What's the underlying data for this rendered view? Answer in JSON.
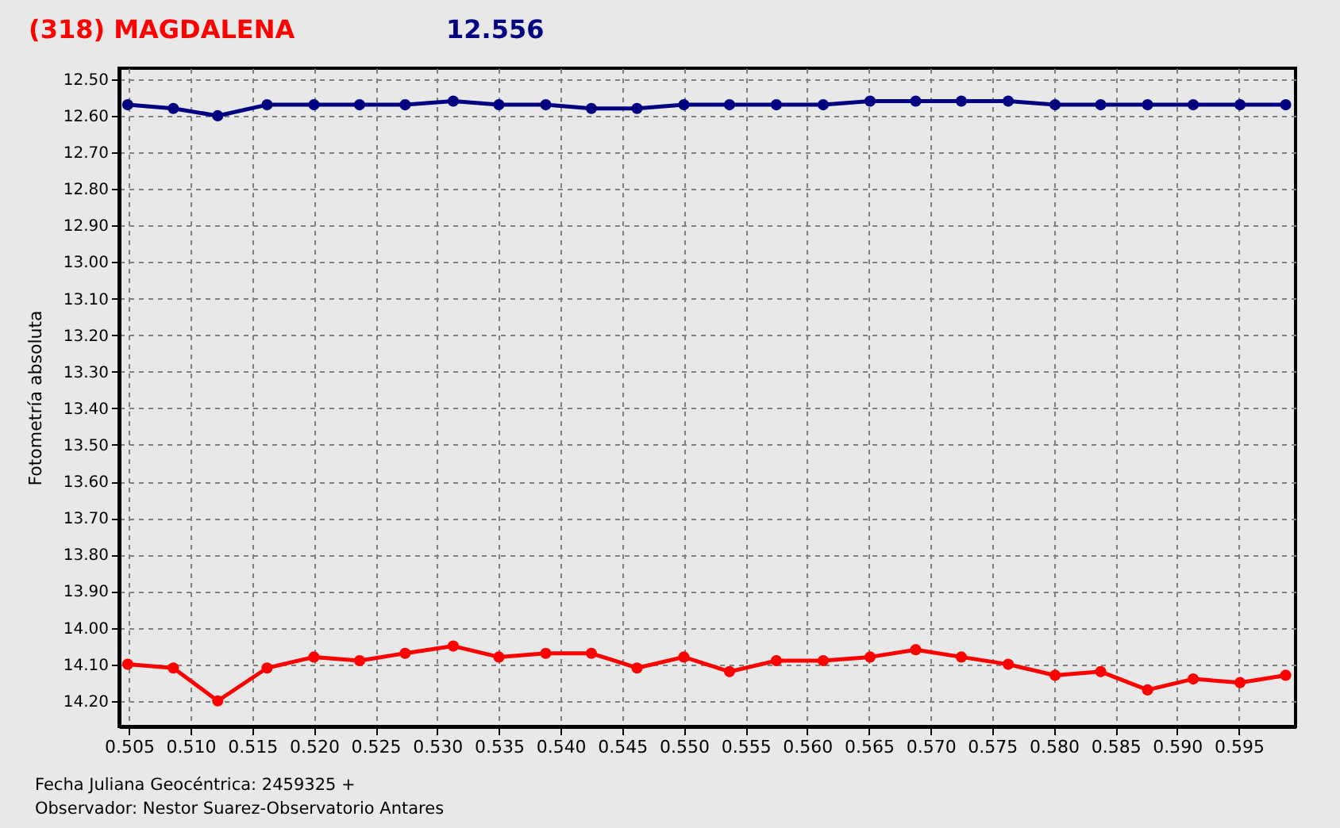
{
  "chart_data": {
    "type": "line",
    "title": "(318) MAGDALENA",
    "subtitle": "12.556",
    "ylabel": "Fotometría absoluta",
    "annotations": [
      "Fecha Juliana Geocéntrica: 2459325 +",
      "Observador: Nestor Suarez-Observatorio Antares"
    ],
    "x": [
      0.5049,
      0.5086,
      0.5122,
      0.5162,
      0.52,
      0.5237,
      0.5274,
      0.5313,
      0.535,
      0.5388,
      0.5425,
      0.5462,
      0.55,
      0.5537,
      0.5575,
      0.5613,
      0.5651,
      0.5688,
      0.5725,
      0.5763,
      0.5801,
      0.5838,
      0.5876,
      0.5913,
      0.5951,
      0.5988
    ],
    "series": [
      {
        "color": "#000080",
        "values": [
          12.57,
          12.58,
          12.6,
          12.57,
          12.57,
          12.57,
          12.57,
          12.56,
          12.57,
          12.57,
          12.58,
          12.58,
          12.57,
          12.57,
          12.57,
          12.57,
          12.56,
          12.56,
          12.56,
          12.56,
          12.57,
          12.57,
          12.57,
          12.57,
          12.57,
          12.57
        ]
      },
      {
        "color": "#ff0000",
        "values": [
          14.1,
          14.11,
          14.2,
          14.11,
          14.08,
          14.09,
          14.07,
          14.05,
          14.08,
          14.07,
          14.07,
          14.11,
          14.08,
          14.12,
          14.09,
          14.09,
          14.08,
          14.06,
          14.08,
          14.1,
          14.13,
          14.12,
          14.17,
          14.14,
          14.15,
          14.13
        ]
      }
    ],
    "xlim": [
      0.5042,
      0.5996
    ],
    "ylim": [
      14.27,
      12.47
    ],
    "xticks": [
      0.505,
      {
        "value": 0.51,
        "label": "0.510"
      },
      0.515,
      {
        "value": 0.52,
        "label": "0.520"
      },
      0.525,
      {
        "value": 0.53,
        "label": "0.530"
      },
      0.535,
      {
        "value": 0.54,
        "label": "0.540"
      },
      0.545,
      {
        "value": 0.55,
        "label": "0.550"
      },
      0.555,
      {
        "value": 0.56,
        "label": "0.560"
      },
      0.565,
      {
        "value": 0.57,
        "label": "0.570"
      },
      0.575,
      {
        "value": 0.58,
        "label": "0.580"
      },
      0.585,
      {
        "value": 0.59,
        "label": "0.590"
      },
      0.595
    ],
    "yticks": [
      {
        "value": 12.5,
        "label": "12.50"
      },
      {
        "value": 12.6,
        "label": "12.60"
      },
      {
        "value": 12.7,
        "label": "12.70"
      },
      {
        "value": 12.8,
        "label": "12.80"
      },
      {
        "value": 12.9,
        "label": "12.90"
      },
      {
        "value": 13.0,
        "label": "13.00"
      },
      {
        "value": 13.1,
        "label": "13.10"
      },
      {
        "value": 13.2,
        "label": "13.20"
      },
      {
        "value": 13.3,
        "label": "13.30"
      },
      {
        "value": 13.4,
        "label": "13.40"
      },
      {
        "value": 13.5,
        "label": "13.50"
      },
      {
        "value": 13.6,
        "label": "13.60"
      },
      {
        "value": 13.7,
        "label": "13.70"
      },
      {
        "value": 13.8,
        "label": "13.80"
      },
      {
        "value": 13.9,
        "label": "13.90"
      },
      {
        "value": 14.0,
        "label": "14.00"
      },
      {
        "value": 14.1,
        "label": "14.10"
      },
      {
        "value": 14.2,
        "label": "14.20"
      }
    ],
    "grid": true,
    "legend": false,
    "marker": "circle",
    "line_style": "solid"
  }
}
